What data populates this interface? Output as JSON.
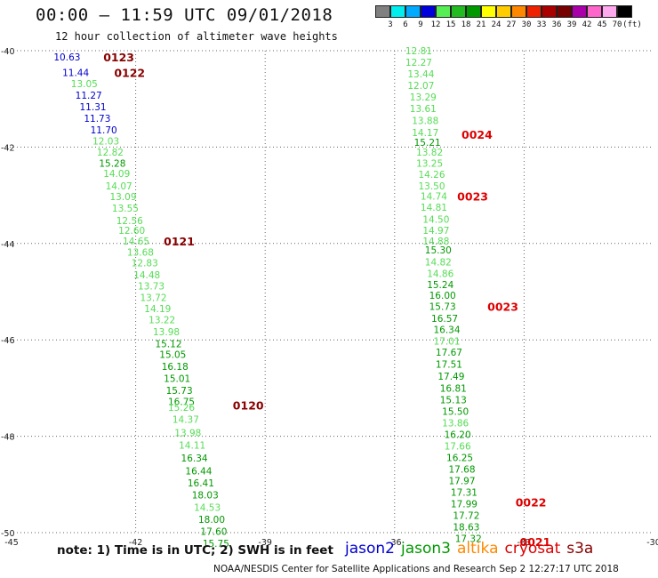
{
  "header": {
    "title": "00:00 — 11:59 UTC 09/01/2018",
    "subtitle": "12 hour collection of altimeter wave heights"
  },
  "legend": {
    "colors": [
      "#808080",
      "#00eeee",
      "#00aaff",
      "#0000dd",
      "#55ee55",
      "#22bb22",
      "#009900",
      "#ffff00",
      "#ffcc00",
      "#ff8800",
      "#ee2200",
      "#aa0000",
      "#770000",
      "#aa00aa",
      "#ff66cc",
      "#ffaaee",
      "#000000"
    ],
    "labels": [
      "3",
      "6",
      "9",
      "12",
      "15",
      "18",
      "21",
      "24",
      "27",
      "30",
      "33",
      "36",
      "39",
      "42",
      "45",
      "70",
      "(ft)"
    ]
  },
  "axes": {
    "x_ticks": [
      "-45",
      "-42",
      "-39",
      "-36",
      "-33",
      "-30"
    ],
    "y_ticks": [
      "-40",
      "-42",
      "-44",
      "-46",
      "-48",
      "-50"
    ]
  },
  "colors": {
    "jason2": "#0000cc",
    "jason3": "#009900",
    "altika": "#ff8800",
    "cryosat": "#dd0000",
    "s3a": "#880000",
    "light_green": "#55dd55",
    "grid": "#666666"
  },
  "map_data": {
    "extent": {
      "lon": [
        -45,
        -30
      ],
      "lat": [
        -50,
        -40
      ]
    },
    "tracks": [
      {
        "time_labels": [
          {
            "text": "0123",
            "lon": -42.75,
            "lat": -40.13,
            "sat": "s3a"
          },
          {
            "text": "0122",
            "lon": -42.5,
            "lat": -40.45,
            "sat": "s3a"
          },
          {
            "text": "0121",
            "lon": -41.35,
            "lat": -43.95,
            "sat": "s3a"
          },
          {
            "text": "0120",
            "lon": -39.75,
            "lat": -47.35,
            "sat": "s3a"
          }
        ],
        "points": [
          {
            "v": "10.63",
            "lon": -43.9,
            "lat": -40.13,
            "c": "jason2"
          },
          {
            "v": "11.44",
            "lon": -43.7,
            "lat": -40.45,
            "c": "jason2"
          },
          {
            "v": "13.05",
            "lon": -43.5,
            "lat": -40.68,
            "c": "light_green"
          },
          {
            "v": "11.27",
            "lon": -43.4,
            "lat": -40.92,
            "c": "jason2"
          },
          {
            "v": "11.31",
            "lon": -43.3,
            "lat": -41.16,
            "c": "jason2"
          },
          {
            "v": "11.73",
            "lon": -43.2,
            "lat": -41.4,
            "c": "jason2"
          },
          {
            "v": "11.70",
            "lon": -43.05,
            "lat": -41.64,
            "c": "jason2"
          },
          {
            "v": "12.03",
            "lon": -43.0,
            "lat": -41.87,
            "c": "light_green"
          },
          {
            "v": "12.82",
            "lon": -42.9,
            "lat": -42.1,
            "c": "light_green"
          },
          {
            "v": "15.28",
            "lon": -42.85,
            "lat": -42.33,
            "c": "jason3"
          },
          {
            "v": "14.09",
            "lon": -42.75,
            "lat": -42.55,
            "c": "light_green"
          },
          {
            "v": "14.07",
            "lon": -42.7,
            "lat": -42.8,
            "c": "light_green"
          },
          {
            "v": "13.09",
            "lon": -42.6,
            "lat": -43.03,
            "c": "light_green"
          },
          {
            "v": "13.55",
            "lon": -42.55,
            "lat": -43.27,
            "c": "light_green"
          },
          {
            "v": "12.56",
            "lon": -42.45,
            "lat": -43.52,
            "c": "light_green"
          },
          {
            "v": "12.60",
            "lon": -42.4,
            "lat": -43.73,
            "c": "light_green"
          },
          {
            "v": "14.65",
            "lon": -42.3,
            "lat": -43.95,
            "c": "light_green"
          },
          {
            "v": "13.68",
            "lon": -42.2,
            "lat": -44.18,
            "c": "light_green"
          },
          {
            "v": "12.83",
            "lon": -42.1,
            "lat": -44.4,
            "c": "light_green"
          },
          {
            "v": "14.48",
            "lon": -42.05,
            "lat": -44.65,
            "c": "light_green"
          },
          {
            "v": "13.73",
            "lon": -41.95,
            "lat": -44.88,
            "c": "light_green"
          },
          {
            "v": "13.72",
            "lon": -41.9,
            "lat": -45.12,
            "c": "light_green"
          },
          {
            "v": "14.19",
            "lon": -41.8,
            "lat": -45.35,
            "c": "light_green"
          },
          {
            "v": "13.22",
            "lon": -41.7,
            "lat": -45.58,
            "c": "light_green"
          },
          {
            "v": "13.98",
            "lon": -41.6,
            "lat": -45.83,
            "c": "light_green"
          },
          {
            "v": "15.12",
            "lon": -41.55,
            "lat": -46.08,
            "c": "jason3"
          },
          {
            "v": "15.05",
            "lon": -41.45,
            "lat": -46.3,
            "c": "jason3"
          },
          {
            "v": "16.18",
            "lon": -41.4,
            "lat": -46.55,
            "c": "jason3"
          },
          {
            "v": "15.01",
            "lon": -41.35,
            "lat": -46.8,
            "c": "jason3"
          },
          {
            "v": "15.73",
            "lon": -41.3,
            "lat": -47.05,
            "c": "jason3"
          },
          {
            "v": "16.75",
            "lon": -41.25,
            "lat": -47.28,
            "c": "jason3"
          },
          {
            "v": "15.26",
            "lon": -41.25,
            "lat": -47.4,
            "c": "light_green"
          },
          {
            "v": "14.37",
            "lon": -41.15,
            "lat": -47.65,
            "c": "light_green"
          },
          {
            "v": "13.98",
            "lon": -41.1,
            "lat": -47.92,
            "c": "light_green"
          },
          {
            "v": "14.11",
            "lon": -41.0,
            "lat": -48.18,
            "c": "light_green"
          },
          {
            "v": "16.34",
            "lon": -40.95,
            "lat": -48.45,
            "c": "jason3"
          },
          {
            "v": "16.44",
            "lon": -40.85,
            "lat": -48.72,
            "c": "jason3"
          },
          {
            "v": "16.41",
            "lon": -40.8,
            "lat": -48.97,
            "c": "jason3"
          },
          {
            "v": "18.03",
            "lon": -40.7,
            "lat": -49.22,
            "c": "jason3"
          },
          {
            "v": "14.53",
            "lon": -40.65,
            "lat": -49.47,
            "c": "light_green"
          },
          {
            "v": "18.00",
            "lon": -40.55,
            "lat": -49.72,
            "c": "jason3"
          },
          {
            "v": "17.60",
            "lon": -40.5,
            "lat": -49.97,
            "c": "jason3"
          },
          {
            "v": "15.75",
            "lon": -40.45,
            "lat": -50.22,
            "c": "jason3"
          }
        ]
      },
      {
        "time_labels": [
          {
            "text": "0024",
            "lon": -34.45,
            "lat": -41.73,
            "sat": "cryosat"
          },
          {
            "text": "0023",
            "lon": -34.55,
            "lat": -43.02,
            "sat": "cryosat"
          },
          {
            "text": "0023",
            "lon": -33.85,
            "lat": -45.3,
            "sat": "cryosat"
          },
          {
            "text": "0022",
            "lon": -33.2,
            "lat": -49.36,
            "sat": "cryosat"
          },
          {
            "text": "0021",
            "lon": -33.1,
            "lat": -50.18,
            "sat": "cryosat"
          }
        ],
        "points": [
          {
            "v": "12.81",
            "lon": -35.75,
            "lat": -40.0,
            "c": "light_green"
          },
          {
            "v": "12.27",
            "lon": -35.75,
            "lat": -40.24,
            "c": "light_green"
          },
          {
            "v": "13.44",
            "lon": -35.7,
            "lat": -40.48,
            "c": "light_green"
          },
          {
            "v": "12.07",
            "lon": -35.7,
            "lat": -40.72,
            "c": "light_green"
          },
          {
            "v": "13.29",
            "lon": -35.65,
            "lat": -40.96,
            "c": "light_green"
          },
          {
            "v": "13.61",
            "lon": -35.65,
            "lat": -41.2,
            "c": "light_green"
          },
          {
            "v": "13.88",
            "lon": -35.6,
            "lat": -41.45,
            "c": "light_green"
          },
          {
            "v": "14.17",
            "lon": -35.6,
            "lat": -41.7,
            "c": "light_green"
          },
          {
            "v": "15.21",
            "lon": -35.55,
            "lat": -41.9,
            "c": "jason3"
          },
          {
            "v": "13.82",
            "lon": -35.5,
            "lat": -42.1,
            "c": "light_green"
          },
          {
            "v": "13.25",
            "lon": -35.5,
            "lat": -42.33,
            "c": "light_green"
          },
          {
            "v": "14.26",
            "lon": -35.45,
            "lat": -42.56,
            "c": "light_green"
          },
          {
            "v": "13.50",
            "lon": -35.45,
            "lat": -42.8,
            "c": "light_green"
          },
          {
            "v": "14.74",
            "lon": -35.4,
            "lat": -43.02,
            "c": "light_green"
          },
          {
            "v": "14.81",
            "lon": -35.4,
            "lat": -43.25,
            "c": "light_green"
          },
          {
            "v": "14.50",
            "lon": -35.35,
            "lat": -43.5,
            "c": "light_green"
          },
          {
            "v": "14.97",
            "lon": -35.35,
            "lat": -43.73,
            "c": "light_green"
          },
          {
            "v": "14.88",
            "lon": -35.35,
            "lat": -43.95,
            "c": "light_green"
          },
          {
            "v": "15.30",
            "lon": -35.3,
            "lat": -44.13,
            "c": "jason3"
          },
          {
            "v": "14.82",
            "lon": -35.3,
            "lat": -44.38,
            "c": "light_green"
          },
          {
            "v": "14.86",
            "lon": -35.25,
            "lat": -44.62,
            "c": "light_green"
          },
          {
            "v": "15.24",
            "lon": -35.25,
            "lat": -44.85,
            "c": "jason3"
          },
          {
            "v": "16.00",
            "lon": -35.2,
            "lat": -45.07,
            "c": "jason3"
          },
          {
            "v": "15.73",
            "lon": -35.2,
            "lat": -45.3,
            "c": "jason3"
          },
          {
            "v": "16.57",
            "lon": -35.15,
            "lat": -45.55,
            "c": "jason3"
          },
          {
            "v": "16.34",
            "lon": -35.1,
            "lat": -45.78,
            "c": "jason3"
          },
          {
            "v": "17.01",
            "lon": -35.1,
            "lat": -46.02,
            "c": "light_green"
          },
          {
            "v": "17.67",
            "lon": -35.05,
            "lat": -46.25,
            "c": "jason3"
          },
          {
            "v": "17.51",
            "lon": -35.05,
            "lat": -46.5,
            "c": "jason3"
          },
          {
            "v": "17.49",
            "lon": -35.0,
            "lat": -46.75,
            "c": "jason3"
          },
          {
            "v": "16.81",
            "lon": -34.95,
            "lat": -47.0,
            "c": "jason3"
          },
          {
            "v": "15.13",
            "lon": -34.95,
            "lat": -47.24,
            "c": "jason3"
          },
          {
            "v": "15.50",
            "lon": -34.9,
            "lat": -47.48,
            "c": "jason3"
          },
          {
            "v": "13.86",
            "lon": -34.9,
            "lat": -47.72,
            "c": "light_green"
          },
          {
            "v": "16.20",
            "lon": -34.85,
            "lat": -47.96,
            "c": "jason3"
          },
          {
            "v": "17.66",
            "lon": -34.85,
            "lat": -48.2,
            "c": "light_green"
          },
          {
            "v": "16.25",
            "lon": -34.8,
            "lat": -48.44,
            "c": "jason3"
          },
          {
            "v": "17.68",
            "lon": -34.75,
            "lat": -48.68,
            "c": "jason3"
          },
          {
            "v": "17.97",
            "lon": -34.75,
            "lat": -48.92,
            "c": "jason3"
          },
          {
            "v": "17.31",
            "lon": -34.7,
            "lat": -49.16,
            "c": "jason3"
          },
          {
            "v": "17.99",
            "lon": -34.7,
            "lat": -49.4,
            "c": "jason3"
          },
          {
            "v": "17.72",
            "lon": -34.65,
            "lat": -49.64,
            "c": "jason3"
          },
          {
            "v": "18.63",
            "lon": -34.65,
            "lat": -49.88,
            "c": "jason3"
          },
          {
            "v": "17.32",
            "lon": -34.6,
            "lat": -50.12,
            "c": "jason3"
          }
        ]
      }
    ]
  },
  "footer": {
    "note": "note: 1) Time is in UTC; 2) SWH is in feet",
    "satellites": [
      {
        "name": "jason2",
        "color": "#0000cc"
      },
      {
        "name": "jason3",
        "color": "#009900"
      },
      {
        "name": "altika",
        "color": "#ff8800"
      },
      {
        "name": "cryosat",
        "color": "#dd0000"
      },
      {
        "name": "s3a",
        "color": "#880000"
      }
    ],
    "credit": "NOAA/NESDIS Center for Satellite Applications and Research    Sep  2 12:27:17 UTC 2018"
  }
}
